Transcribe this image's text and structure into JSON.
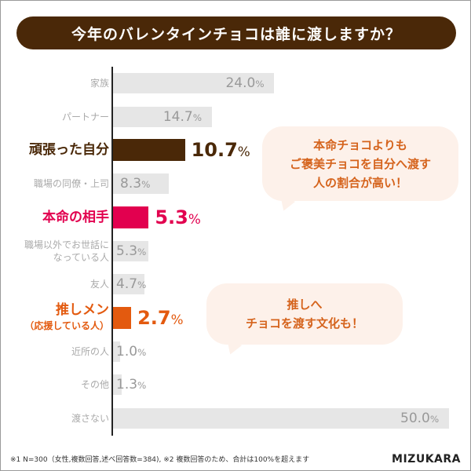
{
  "title": "今年のバレンタインチョコは誰に渡しますか？",
  "chart_data": {
    "type": "bar",
    "orientation": "horizontal",
    "title": "今年のバレンタインチョコは誰に渡しますか？",
    "categories": [
      "家族",
      "パートナー",
      "頑張った自分",
      "職場の同僚・上司",
      "本命の相手",
      "職場以外でお世話になっている人",
      "友人",
      "推しメン（応援している人）",
      "近所の人",
      "その他",
      "渡さない"
    ],
    "label_lines": [
      [
        "家族"
      ],
      [
        "パートナー"
      ],
      [
        "頑張った自分"
      ],
      [
        "職場の同僚・上司"
      ],
      [
        "本命の相手"
      ],
      [
        "職場以外でお世話に",
        "なっている人"
      ],
      [
        "友人"
      ],
      [
        "推しメン",
        "（応援している人）"
      ],
      [
        "近所の人"
      ],
      [
        "その他"
      ],
      [
        "渡さない"
      ]
    ],
    "values": [
      24.0,
      14.7,
      10.7,
      8.3,
      5.3,
      5.3,
      4.7,
      2.7,
      1.0,
      1.3,
      50.0
    ],
    "value_labels": [
      "24.0",
      "14.7",
      "10.7",
      "8.3",
      "5.3",
      "5.3",
      "4.7",
      "2.7",
      "1.0",
      "1.3",
      "50.0"
    ],
    "unit": "%",
    "highlight": {
      "2": "#4a2808",
      "4": "#e2004f",
      "7": "#e35a0f"
    },
    "bar_color": "#e6e6e6",
    "xlim": [
      0,
      50
    ],
    "grid": false
  },
  "callouts": [
    "本命チョコよりも\nご褒美チョコを自分へ渡す\n人の割合が高い！",
    "推しへ\nチョコを渡す文化も！"
  ],
  "footnote": "※1 N=300（女性,複数回答,述べ回答数=384), ※2 複数回答のため、合計は100%を超えます",
  "logo": "MIZUKARA"
}
